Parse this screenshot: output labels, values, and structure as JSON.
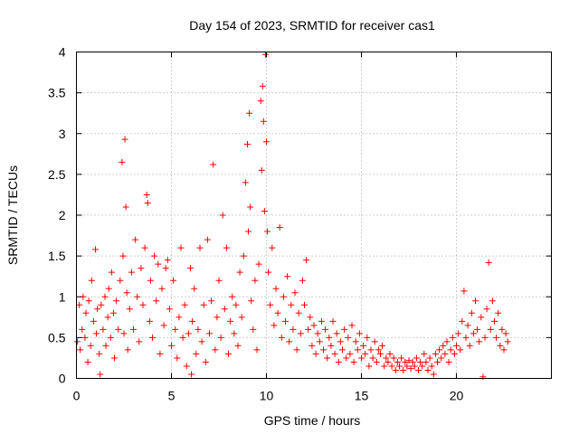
{
  "chart_data": {
    "type": "scatter",
    "title": "Day 154 of 2023, SRMTID for receiver cas1",
    "xlabel": "GPS time / hours",
    "ylabel": "SRMTID / TECUs",
    "xlim": [
      0,
      25
    ],
    "ylim": [
      0,
      4
    ],
    "xticks": [
      0,
      5,
      10,
      15,
      20
    ],
    "xtick_labels": [
      "0",
      "5",
      "10",
      "15",
      "20"
    ],
    "yticks": [
      0,
      0.5,
      1,
      1.5,
      2,
      2.5,
      3,
      3.5,
      4
    ],
    "ytick_labels": [
      "0",
      "0.5",
      "1",
      "1.5",
      "2",
      "2.5",
      "3",
      "3.5",
      "4"
    ],
    "grid": true,
    "marker": "+",
    "color": "#ff0000",
    "series": [
      {
        "name": "SRMTID",
        "points": [
          [
            0.05,
            0.45
          ],
          [
            0.15,
            0.9
          ],
          [
            0.2,
            0.35
          ],
          [
            0.3,
            0.6
          ],
          [
            0.35,
            1.0
          ],
          [
            0.45,
            0.5
          ],
          [
            0.5,
            0.8
          ],
          [
            0.6,
            0.2
          ],
          [
            0.65,
            0.95
          ],
          [
            0.75,
            0.4
          ],
          [
            0.8,
            1.2
          ],
          [
            0.9,
            0.7
          ],
          [
            1.0,
            1.58
          ],
          [
            1.05,
            0.55
          ],
          [
            1.1,
            0.85
          ],
          [
            1.2,
            0.3
          ],
          [
            1.25,
            0.05
          ],
          [
            1.3,
            0.9
          ],
          [
            1.4,
            0.6
          ],
          [
            1.5,
            1.0
          ],
          [
            1.55,
            0.4
          ],
          [
            1.65,
            0.75
          ],
          [
            1.7,
            1.1
          ],
          [
            1.8,
            0.5
          ],
          [
            1.85,
            1.3
          ],
          [
            1.95,
            0.8
          ],
          [
            2.0,
            0.25
          ],
          [
            2.1,
            0.95
          ],
          [
            2.2,
            0.6
          ],
          [
            2.3,
            1.2
          ],
          [
            2.4,
            2.65
          ],
          [
            2.45,
            1.5
          ],
          [
            2.5,
            0.55
          ],
          [
            2.55,
            2.93
          ],
          [
            2.6,
            2.1
          ],
          [
            2.65,
            1.05
          ],
          [
            2.7,
            0.35
          ],
          [
            2.8,
            0.85
          ],
          [
            2.9,
            1.3
          ],
          [
            3.0,
            0.6
          ],
          [
            3.1,
            1.7
          ],
          [
            3.2,
            1.0
          ],
          [
            3.3,
            0.45
          ],
          [
            3.4,
            1.35
          ],
          [
            3.5,
            0.9
          ],
          [
            3.6,
            1.6
          ],
          [
            3.7,
            2.25
          ],
          [
            3.75,
            2.15
          ],
          [
            3.85,
            0.7
          ],
          [
            3.9,
            1.2
          ],
          [
            4.0,
            0.5
          ],
          [
            4.1,
            1.5
          ],
          [
            4.2,
            0.95
          ],
          [
            4.3,
            1.4
          ],
          [
            4.4,
            0.3
          ],
          [
            4.5,
            1.1
          ],
          [
            4.6,
            0.65
          ],
          [
            4.7,
            1.35
          ],
          [
            4.8,
            1.45
          ],
          [
            4.9,
            0.85
          ],
          [
            5.0,
            0.4
          ],
          [
            5.1,
            1.2
          ],
          [
            5.2,
            0.6
          ],
          [
            5.3,
            0.25
          ],
          [
            5.4,
            0.75
          ],
          [
            5.5,
            1.6
          ],
          [
            5.6,
            0.5
          ],
          [
            5.7,
            0.9
          ],
          [
            5.8,
            0.15
          ],
          [
            5.9,
            0.55
          ],
          [
            6.0,
            1.35
          ],
          [
            6.05,
            0.05
          ],
          [
            6.1,
            0.7
          ],
          [
            6.2,
            1.1
          ],
          [
            6.3,
            0.3
          ],
          [
            6.4,
            0.6
          ],
          [
            6.5,
            1.6
          ],
          [
            6.6,
            0.45
          ],
          [
            6.7,
            0.9
          ],
          [
            6.8,
            0.2
          ],
          [
            6.9,
            1.7
          ],
          [
            7.0,
            0.55
          ],
          [
            7.1,
            0.95
          ],
          [
            7.2,
            2.62
          ],
          [
            7.3,
            0.35
          ],
          [
            7.4,
            0.75
          ],
          [
            7.5,
            1.2
          ],
          [
            7.6,
            0.5
          ],
          [
            7.7,
            2.0
          ],
          [
            7.8,
            0.85
          ],
          [
            7.9,
            1.6
          ],
          [
            8.0,
            0.3
          ],
          [
            8.1,
            0.7
          ],
          [
            8.2,
            1.0
          ],
          [
            8.3,
            0.55
          ],
          [
            8.4,
            0.9
          ],
          [
            8.5,
            0.4
          ],
          [
            8.6,
            1.3
          ],
          [
            8.7,
            0.75
          ],
          [
            8.8,
            1.5
          ],
          [
            8.9,
            2.4
          ],
          [
            9.0,
            2.87
          ],
          [
            9.05,
            1.8
          ],
          [
            9.1,
            3.25
          ],
          [
            9.15,
            2.1
          ],
          [
            9.2,
            0.95
          ],
          [
            9.3,
            0.6
          ],
          [
            9.4,
            1.2
          ],
          [
            9.5,
            0.35
          ],
          [
            9.6,
            1.4
          ],
          [
            9.7,
            3.4
          ],
          [
            9.75,
            2.55
          ],
          [
            9.8,
            3.58
          ],
          [
            9.85,
            3.15
          ],
          [
            9.9,
            2.05
          ],
          [
            9.95,
            3.97
          ],
          [
            10.0,
            2.9
          ],
          [
            10.05,
            1.8
          ],
          [
            10.1,
            1.3
          ],
          [
            10.2,
            0.9
          ],
          [
            10.3,
            1.6
          ],
          [
            10.4,
            0.65
          ],
          [
            10.5,
            1.1
          ],
          [
            10.6,
            0.8
          ],
          [
            10.7,
            1.85
          ],
          [
            10.8,
            0.5
          ],
          [
            10.9,
            1.0
          ],
          [
            11.0,
            0.7
          ],
          [
            11.1,
            1.25
          ],
          [
            11.2,
            0.45
          ],
          [
            11.3,
            0.9
          ],
          [
            11.4,
            0.6
          ],
          [
            11.5,
            1.05
          ],
          [
            11.6,
            0.35
          ],
          [
            11.7,
            0.8
          ],
          [
            11.8,
            0.55
          ],
          [
            11.9,
            1.2
          ],
          [
            12.0,
            0.9
          ],
          [
            12.1,
            1.45
          ],
          [
            12.2,
            0.6
          ],
          [
            12.3,
            0.75
          ],
          [
            12.4,
            0.4
          ],
          [
            12.5,
            0.65
          ],
          [
            12.6,
            0.3
          ],
          [
            12.7,
            0.55
          ],
          [
            12.8,
            0.45
          ],
          [
            12.9,
            0.7
          ],
          [
            13.0,
            0.35
          ],
          [
            13.1,
            0.6
          ],
          [
            13.2,
            0.25
          ],
          [
            13.3,
            0.5
          ],
          [
            13.4,
            0.4
          ],
          [
            13.5,
            0.7
          ],
          [
            13.6,
            0.3
          ],
          [
            13.7,
            0.55
          ],
          [
            13.8,
            0.2
          ],
          [
            13.9,
            0.45
          ],
          [
            14.0,
            0.35
          ],
          [
            14.1,
            0.6
          ],
          [
            14.2,
            0.25
          ],
          [
            14.3,
            0.5
          ],
          [
            14.4,
            0.3
          ],
          [
            14.5,
            0.65
          ],
          [
            14.6,
            0.2
          ],
          [
            14.7,
            0.45
          ],
          [
            14.8,
            0.35
          ],
          [
            14.9,
            0.55
          ],
          [
            15.0,
            0.25
          ],
          [
            15.1,
            0.4
          ],
          [
            15.2,
            0.3
          ],
          [
            15.3,
            0.5
          ],
          [
            15.4,
            0.15
          ],
          [
            15.5,
            0.35
          ],
          [
            15.6,
            0.25
          ],
          [
            15.7,
            0.45
          ],
          [
            15.8,
            0.2
          ],
          [
            15.9,
            0.35
          ],
          [
            16.0,
            0.3
          ],
          [
            16.1,
            0.4
          ],
          [
            16.2,
            0.15
          ],
          [
            16.3,
            0.25
          ],
          [
            16.4,
            0.2
          ],
          [
            16.5,
            0.3
          ],
          [
            16.6,
            0.15
          ],
          [
            16.7,
            0.25
          ],
          [
            16.8,
            0.1
          ],
          [
            16.9,
            0.2
          ],
          [
            17.0,
            0.15
          ],
          [
            17.1,
            0.25
          ],
          [
            17.2,
            0.1
          ],
          [
            17.3,
            0.2
          ],
          [
            17.4,
            0.15
          ],
          [
            17.5,
            0.22
          ],
          [
            17.6,
            0.12
          ],
          [
            17.7,
            0.2
          ],
          [
            17.8,
            0.15
          ],
          [
            17.9,
            0.25
          ],
          [
            18.0,
            0.1
          ],
          [
            18.1,
            0.2
          ],
          [
            18.2,
            0.15
          ],
          [
            18.3,
            0.3
          ],
          [
            18.4,
            0.2
          ],
          [
            18.5,
            0.1
          ],
          [
            18.6,
            0.25
          ],
          [
            18.7,
            0.15
          ],
          [
            18.8,
            0.05
          ],
          [
            18.9,
            0.3
          ],
          [
            19.0,
            0.2
          ],
          [
            19.1,
            0.35
          ],
          [
            19.2,
            0.25
          ],
          [
            19.3,
            0.4
          ],
          [
            19.4,
            0.3
          ],
          [
            19.5,
            0.45
          ],
          [
            19.6,
            0.2
          ],
          [
            19.7,
            0.35
          ],
          [
            19.8,
            0.5
          ],
          [
            19.9,
            0.3
          ],
          [
            20.0,
            0.4
          ],
          [
            20.1,
            0.55
          ],
          [
            20.2,
            0.35
          ],
          [
            20.3,
            0.7
          ],
          [
            20.4,
            1.07
          ],
          [
            20.5,
            0.5
          ],
          [
            20.6,
            0.65
          ],
          [
            20.7,
            0.4
          ],
          [
            20.8,
            0.8
          ],
          [
            20.9,
            0.55
          ],
          [
            21.0,
            0.95
          ],
          [
            21.1,
            0.6
          ],
          [
            21.2,
            0.45
          ],
          [
            21.3,
            0.75
          ],
          [
            21.4,
            0.02
          ],
          [
            21.5,
            0.5
          ],
          [
            21.6,
            0.85
          ],
          [
            21.7,
            1.42
          ],
          [
            21.8,
            0.6
          ],
          [
            21.9,
            0.95
          ],
          [
            22.0,
            0.7
          ],
          [
            22.1,
            0.5
          ],
          [
            22.2,
            0.8
          ],
          [
            22.3,
            0.4
          ],
          [
            22.4,
            0.6
          ],
          [
            22.5,
            0.35
          ],
          [
            22.6,
            0.55
          ],
          [
            22.7,
            0.45
          ]
        ]
      }
    ]
  }
}
